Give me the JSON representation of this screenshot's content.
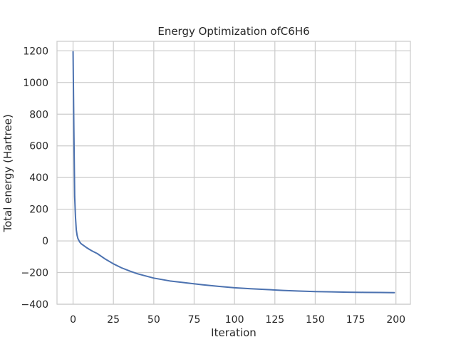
{
  "chart_data": {
    "type": "line",
    "title": "Energy Optimization ofC6H6",
    "xlabel": "Iteration",
    "ylabel": "Total energy (Hartree)",
    "xlim": [
      -9.95,
      208.95
    ],
    "ylim": [
      -400,
      1260
    ],
    "xticks": [
      0,
      25,
      50,
      75,
      100,
      125,
      150,
      175,
      200
    ],
    "yticks": [
      -400,
      -200,
      0,
      200,
      400,
      600,
      800,
      1000,
      1200
    ],
    "grid": true,
    "series": [
      {
        "color": "#4c72b0",
        "x": [
          0,
          0.5,
          1,
          1.5,
          2,
          2.5,
          3,
          4,
          5,
          6,
          8,
          10,
          12,
          15,
          20,
          25,
          30,
          35,
          40,
          50,
          60,
          70,
          80,
          90,
          100,
          110,
          120,
          130,
          140,
          150,
          160,
          170,
          180,
          190,
          199
        ],
        "y": [
          1195,
          700,
          280,
          150,
          70,
          35,
          15,
          -5,
          -18,
          -25,
          -40,
          -53,
          -65,
          -80,
          -115,
          -145,
          -170,
          -190,
          -208,
          -235,
          -253,
          -265,
          -277,
          -287,
          -296,
          -302,
          -307,
          -313,
          -317,
          -320,
          -322,
          -324,
          -325,
          -326,
          -327
        ]
      }
    ]
  }
}
